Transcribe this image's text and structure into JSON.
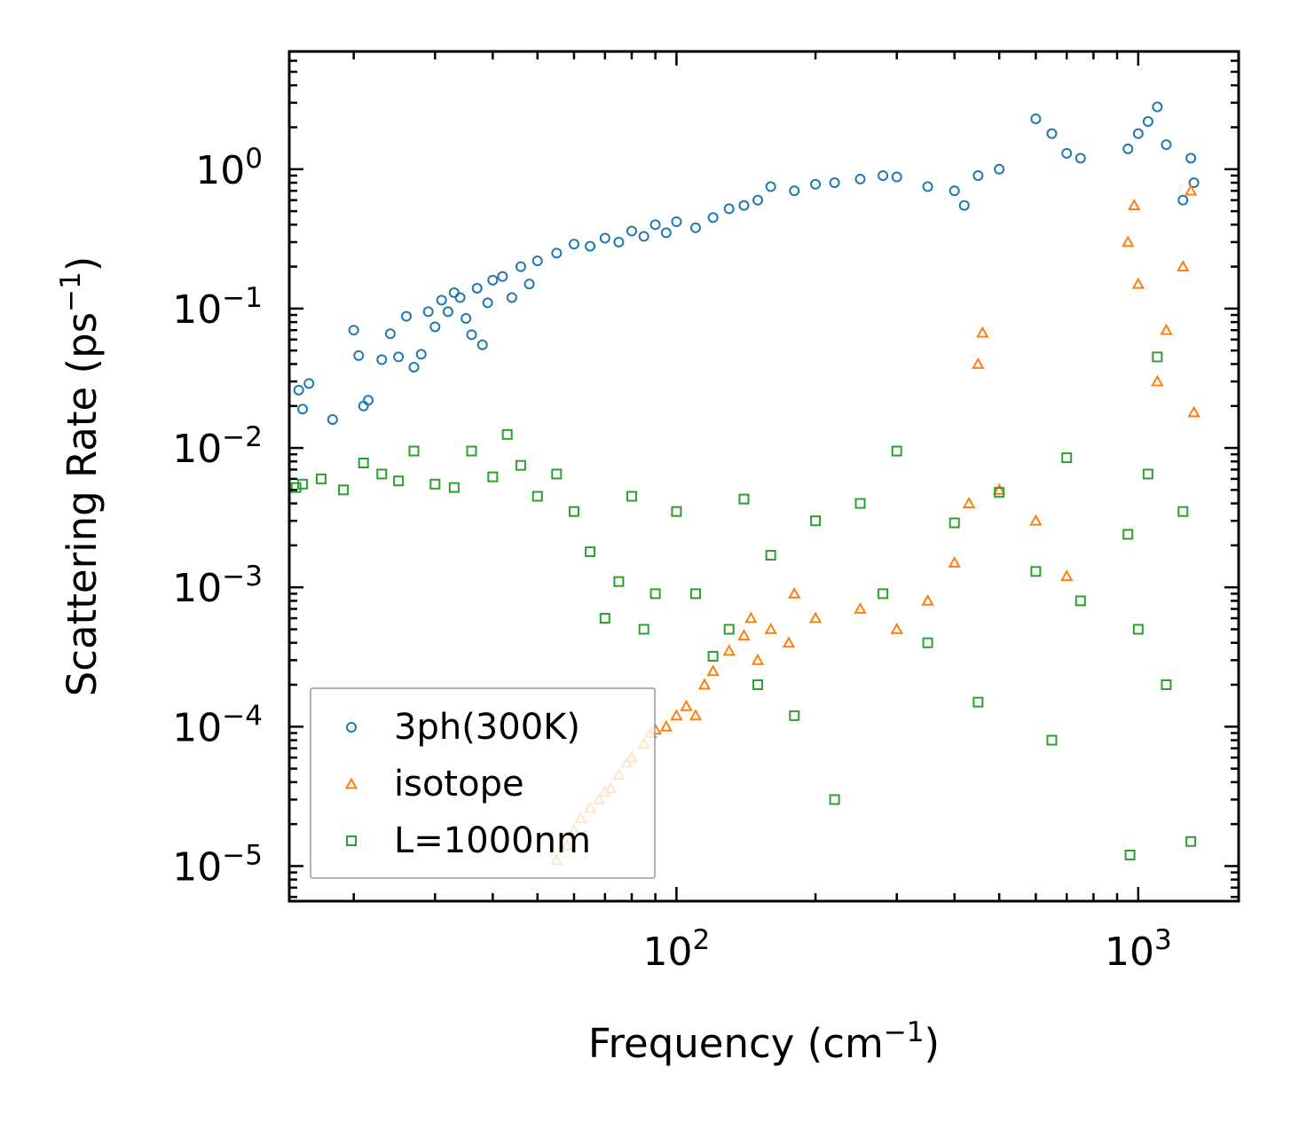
{
  "chart_data": {
    "type": "scatter",
    "xscale": "log",
    "yscale": "log",
    "xlim": [
      14.5,
      1650
    ],
    "ylim": [
      5.6e-06,
      7.0
    ],
    "xlabel": "Frequency (cm",
    "xlabel_sup": "−1",
    "xlabel_tail": ")",
    "ylabel": "Scattering Rate (ps",
    "ylabel_sup": "−1",
    "ylabel_tail": ")",
    "x_major_ticks": [
      {
        "value": 100,
        "base": "10",
        "exp": "2"
      },
      {
        "value": 1000,
        "base": "10",
        "exp": "3"
      }
    ],
    "y_major_ticks": [
      {
        "value": 1,
        "base": "10",
        "exp": "0"
      },
      {
        "value": 0.1,
        "base": "10",
        "exp": "−1"
      },
      {
        "value": 0.01,
        "base": "10",
        "exp": "−2"
      },
      {
        "value": 0.001,
        "base": "10",
        "exp": "−3"
      },
      {
        "value": 0.0001,
        "base": "10",
        "exp": "−4"
      },
      {
        "value": 1e-05,
        "base": "10",
        "exp": "−5"
      }
    ],
    "legend_position": "lower-left",
    "series": [
      {
        "name": "3ph(300K)",
        "marker": "circle",
        "color": "#1f77b4",
        "x": [
          15.2,
          15.5,
          16.0,
          18.0,
          20.0,
          20.5,
          21.0,
          21.5,
          23.0,
          24.0,
          25.0,
          26.0,
          27.0,
          28.0,
          29.0,
          30.0,
          31.0,
          32.0,
          33.0,
          34.0,
          35.0,
          36.0,
          37.0,
          38.0,
          39.0,
          40.0,
          42.0,
          44.0,
          46.0,
          48.0,
          50.0,
          55.0,
          60.0,
          65.0,
          70.0,
          75.0,
          80.0,
          85.0,
          90.0,
          95.0,
          100.0,
          110.0,
          120.0,
          130.0,
          140.0,
          150.0,
          160.0,
          180.0,
          200.0,
          220.0,
          250.0,
          280.0,
          300.0,
          350.0,
          400.0,
          420.0,
          450.0,
          500.0,
          600.0,
          650.0,
          700.0,
          750.0,
          950.0,
          1000.0,
          1050.0,
          1100.0,
          1150.0,
          1250.0,
          1300.0,
          1320.0
        ],
        "y": [
          0.026,
          0.019,
          0.029,
          0.016,
          0.07,
          0.046,
          0.02,
          0.022,
          0.043,
          0.066,
          0.045,
          0.088,
          0.038,
          0.047,
          0.095,
          0.074,
          0.115,
          0.095,
          0.13,
          0.12,
          0.085,
          0.065,
          0.14,
          0.055,
          0.11,
          0.16,
          0.17,
          0.12,
          0.2,
          0.15,
          0.22,
          0.25,
          0.29,
          0.28,
          0.32,
          0.3,
          0.36,
          0.33,
          0.4,
          0.35,
          0.42,
          0.38,
          0.45,
          0.52,
          0.55,
          0.6,
          0.75,
          0.7,
          0.78,
          0.8,
          0.85,
          0.9,
          0.88,
          0.75,
          0.7,
          0.55,
          0.9,
          1.0,
          2.3,
          1.8,
          1.3,
          1.2,
          1.4,
          1.8,
          2.2,
          2.8,
          1.5,
          0.6,
          1.2,
          0.8
        ]
      },
      {
        "name": "isotope",
        "marker": "triangle",
        "color": "#ff7f0e",
        "x": [
          55.0,
          58.0,
          60.0,
          62.0,
          65.0,
          68.0,
          70.0,
          72.0,
          75.0,
          78.0,
          80.0,
          85.0,
          88.0,
          90.0,
          95.0,
          100.0,
          105.0,
          110.0,
          115.0,
          120.0,
          130.0,
          140.0,
          145.0,
          150.0,
          160.0,
          175.0,
          180.0,
          200.0,
          250.0,
          300.0,
          350.0,
          400.0,
          430.0,
          450.0,
          460.0,
          500.0,
          600.0,
          700.0,
          950.0,
          980.0,
          1000.0,
          1100.0,
          1150.0,
          1250.0,
          1300.0,
          1320.0
        ],
        "y": [
          1.1e-05,
          1.4e-05,
          1.8e-05,
          2.2e-05,
          2.6e-05,
          3e-05,
          3.4e-05,
          3.6e-05,
          4.5e-05,
          5.5e-05,
          6e-05,
          7.5e-05,
          9e-05,
          9.5e-05,
          0.0001,
          0.00012,
          0.00014,
          0.00012,
          0.0002,
          0.00025,
          0.00035,
          0.00045,
          0.0006,
          0.0003,
          0.0005,
          0.0004,
          0.0009,
          0.0006,
          0.0007,
          0.0005,
          0.0008,
          0.0015,
          0.004,
          0.04,
          0.067,
          0.005,
          0.003,
          0.0012,
          0.3,
          0.55,
          0.15,
          0.03,
          0.07,
          0.2,
          0.7,
          0.018
        ]
      },
      {
        "name": "L=1000nm",
        "marker": "square",
        "color": "#2ca02c",
        "x": [
          15.0,
          15.5,
          17.0,
          19.0,
          21.0,
          23.0,
          25.0,
          27.0,
          30.0,
          33.0,
          36.0,
          40.0,
          43.0,
          46.0,
          50.0,
          55.0,
          60.0,
          65.0,
          70.0,
          75.0,
          80.0,
          85.0,
          90.0,
          100.0,
          110.0,
          120.0,
          130.0,
          140.0,
          150.0,
          160.0,
          180.0,
          200.0,
          220.0,
          250.0,
          280.0,
          300.0,
          350.0,
          400.0,
          450.0,
          500.0,
          600.0,
          650.0,
          700.0,
          750.0,
          950.0,
          960.0,
          1000.0,
          1050.0,
          1100.0,
          1150.0,
          1250.0,
          1300.0
        ],
        "y": [
          0.0052,
          0.0055,
          0.006,
          0.005,
          0.0078,
          0.0065,
          0.0058,
          0.0095,
          0.0055,
          0.0052,
          0.0095,
          0.0062,
          0.0125,
          0.0075,
          0.0045,
          0.0065,
          0.0035,
          0.0018,
          0.0006,
          0.0011,
          0.0045,
          0.0005,
          0.0009,
          0.0035,
          0.0009,
          0.00032,
          0.0005,
          0.0043,
          0.0002,
          0.0017,
          0.00012,
          0.003,
          3e-05,
          0.004,
          0.0009,
          0.0095,
          0.0004,
          0.0029,
          0.00015,
          0.0048,
          0.0013,
          8e-05,
          0.0085,
          0.0008,
          0.0024,
          1.2e-05,
          0.0005,
          0.0065,
          0.045,
          0.0002,
          0.0035,
          1.5e-05
        ]
      }
    ]
  }
}
